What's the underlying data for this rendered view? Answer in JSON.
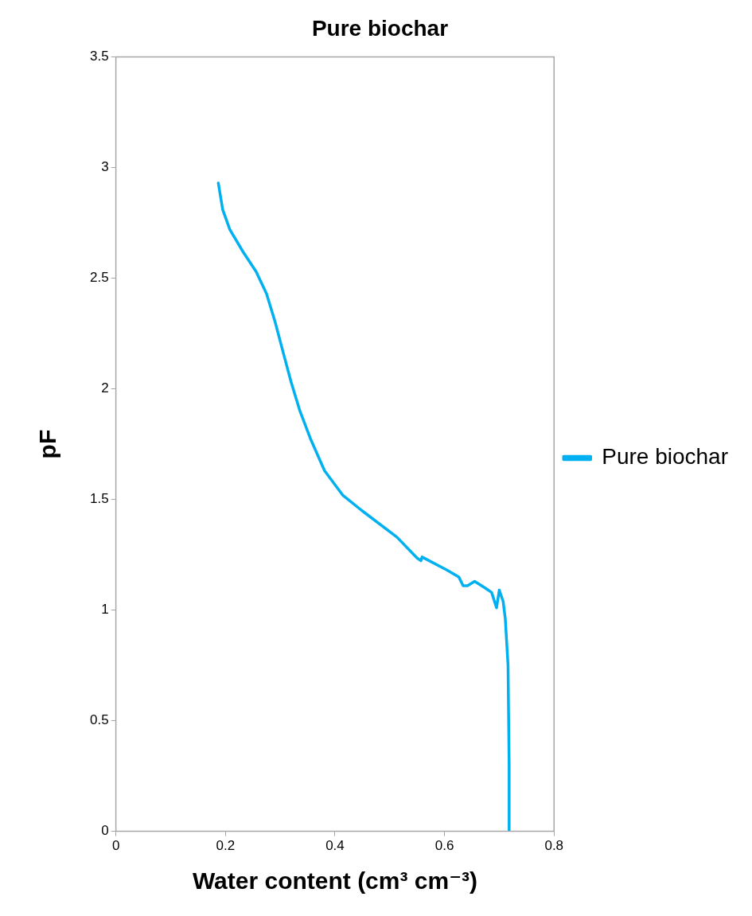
{
  "chart_data": {
    "type": "line",
    "title": "Pure biochar",
    "xlabel": "Water content (cm³ cm⁻³)",
    "ylabel": "pF",
    "xlim": [
      0,
      0.8
    ],
    "xticks": [
      0,
      0.2,
      0.4,
      0.6,
      0.8
    ],
    "ylim": [
      0,
      3.5
    ],
    "yticks": [
      0,
      0.5,
      1,
      1.5,
      2,
      2.5,
      3,
      3.5
    ],
    "grid": false,
    "legend": "right",
    "marker": "none",
    "line_style": "solid",
    "series": [
      {
        "name": "Pure biochar",
        "color": "#00b0f0",
        "x": [
          0.187,
          0.195,
          0.208,
          0.232,
          0.256,
          0.275,
          0.291,
          0.307,
          0.32,
          0.336,
          0.356,
          0.381,
          0.414,
          0.449,
          0.513,
          0.55,
          0.557,
          0.559,
          0.605,
          0.626,
          0.634,
          0.642,
          0.655,
          0.674,
          0.686,
          0.695,
          0.7,
          0.707,
          0.711,
          0.716,
          0.718,
          0.718
        ],
        "values": [
          2.93,
          2.81,
          2.72,
          2.62,
          2.53,
          2.43,
          2.3,
          2.15,
          2.03,
          1.9,
          1.77,
          1.63,
          1.52,
          1.45,
          1.33,
          1.235,
          1.223,
          1.24,
          1.18,
          1.15,
          1.11,
          1.11,
          1.13,
          1.1,
          1.08,
          1.01,
          1.09,
          1.04,
          0.96,
          0.75,
          0.3,
          0
        ]
      }
    ]
  }
}
